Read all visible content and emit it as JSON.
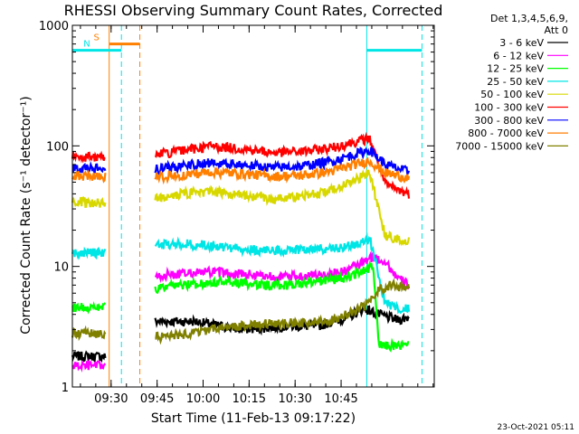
{
  "chart_data": {
    "type": "line",
    "title": "RHESSI Observing Summary Count Rates, Corrected",
    "ylabel": "Corrected Count Rate (s⁻¹ detector⁻¹)",
    "xlabel": "Start Time (11-Feb-13 09:17:22)",
    "x_units": "minutes after 09:17:22",
    "xlim": [
      0,
      118
    ],
    "ylim": [
      1,
      1000
    ],
    "yscale": "log",
    "grid": false,
    "legend_placement": "top-right",
    "legend_header": [
      "Det 1,3,4,5,6,9,",
      "Att 0"
    ],
    "footer_date": "23-Oct-2021 05:11",
    "x_ticks": [
      {
        "label": "09:30",
        "value": 12.63
      },
      {
        "label": "09:45",
        "value": 27.63
      },
      {
        "label": "10:00",
        "value": 42.63
      },
      {
        "label": "10:15",
        "value": 57.63
      },
      {
        "label": "10:30",
        "value": 72.63
      },
      {
        "label": "10:45",
        "value": 87.63
      }
    ],
    "y_ticks": [
      {
        "label": "1",
        "value": 1
      },
      {
        "label": "10",
        "value": 10
      },
      {
        "label": "100",
        "value": 100
      },
      {
        "label": "1000",
        "value": 1000
      }
    ],
    "flags": [
      {
        "label": "S",
        "color": "#ff7f00",
        "level": 700,
        "x_start": 12,
        "x_end": 22
      },
      {
        "label": "N",
        "color": "#00e5e5",
        "level": 620,
        "x_start": 0,
        "x_end": 16
      }
    ],
    "flag_lines": [
      {
        "label": "",
        "color": "#00e5e5",
        "level": 620,
        "x_start": 96,
        "x_end": 114
      }
    ],
    "verticals": [
      {
        "x": 12,
        "color": "#ff7f00",
        "style": "solid"
      },
      {
        "x": 16,
        "color": "#00e5e5",
        "style": "dashed"
      },
      {
        "x": 22,
        "color": "#ff7f00",
        "style": "dashed"
      },
      {
        "x": 96,
        "color": "#00e5e5",
        "style": "solid"
      },
      {
        "x": 114,
        "color": "#00e5e5",
        "style": "dashed"
      }
    ],
    "series": [
      {
        "name": "3 - 6 keV",
        "color": "#000000",
        "x": [
          0,
          11,
          27,
          40,
          55,
          70,
          80,
          90,
          95,
          100,
          106,
          110
        ],
        "y": [
          1.8,
          1.8,
          3.5,
          3.5,
          3.0,
          3.2,
          3.2,
          3.8,
          4.5,
          4.0,
          3.6,
          3.8
        ]
      },
      {
        "name": "6 - 12 keV",
        "color": "#ff00ff",
        "x": [
          0,
          11,
          27,
          30,
          45,
          60,
          70,
          80,
          88,
          94,
          98,
          102,
          106,
          110
        ],
        "y": [
          1.5,
          1.5,
          8.0,
          8.5,
          9.0,
          8.5,
          8.2,
          8.5,
          9.0,
          10.5,
          12.0,
          11.0,
          8.0,
          7.0
        ]
      },
      {
        "name": "12 - 25 keV",
        "color": "#00ff00",
        "x": [
          0,
          11,
          27,
          35,
          50,
          60,
          70,
          80,
          88,
          94,
          98,
          100,
          104,
          110
        ],
        "y": [
          4.6,
          4.6,
          6.5,
          7.0,
          7.5,
          7.0,
          7.0,
          7.5,
          8.0,
          9.0,
          10.0,
          2.2,
          2.2,
          2.2
        ]
      },
      {
        "name": "25 - 50 keV",
        "color": "#00e5e5",
        "x": [
          0,
          11,
          27,
          35,
          45,
          55,
          65,
          75,
          85,
          92,
          97,
          102,
          106,
          110
        ],
        "y": [
          13,
          13,
          15,
          15.5,
          15,
          14,
          13.5,
          14,
          14,
          15,
          17,
          5.0,
          4.5,
          4.5
        ]
      },
      {
        "name": "50 - 100 keV",
        "color": "#d8d800",
        "x": [
          0,
          11,
          27,
          35,
          45,
          55,
          65,
          75,
          85,
          92,
          97,
          102,
          106,
          110
        ],
        "y": [
          35,
          33,
          37,
          40,
          42,
          39,
          36,
          38,
          43,
          52,
          60,
          18,
          17,
          16
        ]
      },
      {
        "name": "100 - 300 keV",
        "color": "#ff0000",
        "x": [
          0,
          11,
          27,
          35,
          45,
          55,
          65,
          75,
          85,
          92,
          97,
          102,
          106,
          110
        ],
        "y": [
          82,
          80,
          85,
          90,
          100,
          95,
          88,
          90,
          97,
          108,
          115,
          48,
          43,
          40
        ]
      },
      {
        "name": "300 - 800 keV",
        "color": "#0000ff",
        "x": [
          0,
          11,
          27,
          35,
          45,
          55,
          65,
          75,
          85,
          92,
          97,
          102,
          106,
          110
        ],
        "y": [
          66,
          64,
          64,
          68,
          73,
          70,
          66,
          68,
          75,
          85,
          93,
          70,
          65,
          61
        ]
      },
      {
        "name": "800 - 7000 keV",
        "color": "#ff7f00",
        "x": [
          0,
          11,
          27,
          35,
          45,
          55,
          65,
          75,
          85,
          92,
          97,
          102,
          106,
          110
        ],
        "y": [
          57,
          55,
          55,
          57,
          61,
          59,
          56,
          57,
          62,
          70,
          75,
          60,
          57,
          54
        ]
      },
      {
        "name": "7000 - 15000 keV",
        "color": "#808000",
        "x": [
          0,
          11,
          27,
          35,
          45,
          55,
          65,
          75,
          85,
          92,
          97,
          100,
          104,
          110
        ],
        "y": [
          2.8,
          2.8,
          2.6,
          2.7,
          3.0,
          3.2,
          3.4,
          3.4,
          3.6,
          4.3,
          5.0,
          6.5,
          7.0,
          6.5
        ]
      }
    ]
  }
}
